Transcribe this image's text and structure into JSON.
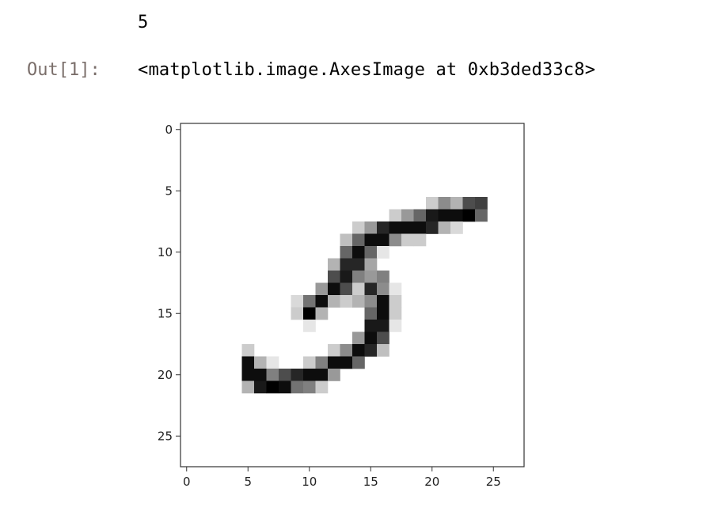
{
  "cell": {
    "stdout": "5",
    "out_prompt": "Out[1]:",
    "out_repr": "<matplotlib.image.AxesImage at 0xb3ded33c8>"
  },
  "chart_data": {
    "type": "heatmap",
    "colormap": "gray_r",
    "shape": [
      28,
      28
    ],
    "x_ticks": [
      "0",
      "5",
      "10",
      "15",
      "20",
      "25"
    ],
    "y_ticks": [
      "0",
      "5",
      "10",
      "15",
      "20",
      "25"
    ],
    "xlim": [
      -0.5,
      27.5
    ],
    "ylim": [
      27.5,
      -0.5
    ],
    "pixels": [
      {
        "r": 6,
        "c": 20,
        "v": 0.2
      },
      {
        "r": 6,
        "c": 21,
        "v": 0.45
      },
      {
        "r": 6,
        "c": 22,
        "v": 0.3
      },
      {
        "r": 6,
        "c": 23,
        "v": 0.7
      },
      {
        "r": 6,
        "c": 24,
        "v": 0.75
      },
      {
        "r": 7,
        "c": 17,
        "v": 0.2
      },
      {
        "r": 7,
        "c": 18,
        "v": 0.4
      },
      {
        "r": 7,
        "c": 19,
        "v": 0.6
      },
      {
        "r": 7,
        "c": 20,
        "v": 0.9
      },
      {
        "r": 7,
        "c": 21,
        "v": 0.95
      },
      {
        "r": 7,
        "c": 22,
        "v": 0.95
      },
      {
        "r": 7,
        "c": 23,
        "v": 1.0
      },
      {
        "r": 7,
        "c": 24,
        "v": 0.6
      },
      {
        "r": 8,
        "c": 14,
        "v": 0.2
      },
      {
        "r": 8,
        "c": 15,
        "v": 0.4
      },
      {
        "r": 8,
        "c": 16,
        "v": 0.85
      },
      {
        "r": 8,
        "c": 17,
        "v": 0.95
      },
      {
        "r": 8,
        "c": 18,
        "v": 0.95
      },
      {
        "r": 8,
        "c": 19,
        "v": 0.95
      },
      {
        "r": 8,
        "c": 20,
        "v": 0.85
      },
      {
        "r": 8,
        "c": 21,
        "v": 0.3
      },
      {
        "r": 8,
        "c": 22,
        "v": 0.15
      },
      {
        "r": 9,
        "c": 13,
        "v": 0.25
      },
      {
        "r": 9,
        "c": 14,
        "v": 0.6
      },
      {
        "r": 9,
        "c": 15,
        "v": 0.95
      },
      {
        "r": 9,
        "c": 16,
        "v": 0.95
      },
      {
        "r": 9,
        "c": 17,
        "v": 0.45
      },
      {
        "r": 9,
        "c": 18,
        "v": 0.2
      },
      {
        "r": 9,
        "c": 19,
        "v": 0.2
      },
      {
        "r": 10,
        "c": 13,
        "v": 0.6
      },
      {
        "r": 10,
        "c": 14,
        "v": 0.95
      },
      {
        "r": 10,
        "c": 15,
        "v": 0.6
      },
      {
        "r": 10,
        "c": 16,
        "v": 0.1
      },
      {
        "r": 11,
        "c": 12,
        "v": 0.3
      },
      {
        "r": 11,
        "c": 13,
        "v": 0.85
      },
      {
        "r": 11,
        "c": 14,
        "v": 0.85
      },
      {
        "r": 11,
        "c": 15,
        "v": 0.35
      },
      {
        "r": 12,
        "c": 12,
        "v": 0.7
      },
      {
        "r": 12,
        "c": 13,
        "v": 0.9
      },
      {
        "r": 12,
        "c": 14,
        "v": 0.5
      },
      {
        "r": 12,
        "c": 15,
        "v": 0.4
      },
      {
        "r": 12,
        "c": 16,
        "v": 0.5
      },
      {
        "r": 13,
        "c": 11,
        "v": 0.4
      },
      {
        "r": 13,
        "c": 12,
        "v": 0.95
      },
      {
        "r": 13,
        "c": 13,
        "v": 0.7
      },
      {
        "r": 13,
        "c": 14,
        "v": 0.2
      },
      {
        "r": 13,
        "c": 15,
        "v": 0.85
      },
      {
        "r": 13,
        "c": 16,
        "v": 0.45
      },
      {
        "r": 13,
        "c": 17,
        "v": 0.1
      },
      {
        "r": 14,
        "c": 9,
        "v": 0.15
      },
      {
        "r": 14,
        "c": 10,
        "v": 0.55
      },
      {
        "r": 14,
        "c": 11,
        "v": 0.95
      },
      {
        "r": 14,
        "c": 12,
        "v": 0.3
      },
      {
        "r": 14,
        "c": 13,
        "v": 0.2
      },
      {
        "r": 14,
        "c": 14,
        "v": 0.3
      },
      {
        "r": 14,
        "c": 15,
        "v": 0.45
      },
      {
        "r": 14,
        "c": 16,
        "v": 0.95
      },
      {
        "r": 14,
        "c": 17,
        "v": 0.2
      },
      {
        "r": 15,
        "c": 9,
        "v": 0.2
      },
      {
        "r": 15,
        "c": 10,
        "v": 1.0
      },
      {
        "r": 15,
        "c": 11,
        "v": 0.3
      },
      {
        "r": 15,
        "c": 15,
        "v": 0.6
      },
      {
        "r": 15,
        "c": 16,
        "v": 0.95
      },
      {
        "r": 15,
        "c": 17,
        "v": 0.2
      },
      {
        "r": 16,
        "c": 10,
        "v": 0.1
      },
      {
        "r": 16,
        "c": 15,
        "v": 0.9
      },
      {
        "r": 16,
        "c": 16,
        "v": 0.9
      },
      {
        "r": 16,
        "c": 17,
        "v": 0.1
      },
      {
        "r": 17,
        "c": 14,
        "v": 0.4
      },
      {
        "r": 17,
        "c": 15,
        "v": 0.95
      },
      {
        "r": 17,
        "c": 16,
        "v": 0.7
      },
      {
        "r": 18,
        "c": 5,
        "v": 0.2
      },
      {
        "r": 18,
        "c": 12,
        "v": 0.2
      },
      {
        "r": 18,
        "c": 13,
        "v": 0.45
      },
      {
        "r": 18,
        "c": 14,
        "v": 0.95
      },
      {
        "r": 18,
        "c": 15,
        "v": 0.85
      },
      {
        "r": 18,
        "c": 16,
        "v": 0.25
      },
      {
        "r": 19,
        "c": 5,
        "v": 0.95
      },
      {
        "r": 19,
        "c": 6,
        "v": 0.3
      },
      {
        "r": 19,
        "c": 7,
        "v": 0.1
      },
      {
        "r": 19,
        "c": 10,
        "v": 0.2
      },
      {
        "r": 19,
        "c": 11,
        "v": 0.5
      },
      {
        "r": 19,
        "c": 12,
        "v": 0.95
      },
      {
        "r": 19,
        "c": 13,
        "v": 0.95
      },
      {
        "r": 19,
        "c": 14,
        "v": 0.6
      },
      {
        "r": 20,
        "c": 5,
        "v": 0.95
      },
      {
        "r": 20,
        "c": 6,
        "v": 0.95
      },
      {
        "r": 20,
        "c": 7,
        "v": 0.5
      },
      {
        "r": 20,
        "c": 8,
        "v": 0.7
      },
      {
        "r": 20,
        "c": 9,
        "v": 0.85
      },
      {
        "r": 20,
        "c": 10,
        "v": 0.95
      },
      {
        "r": 20,
        "c": 11,
        "v": 0.95
      },
      {
        "r": 20,
        "c": 12,
        "v": 0.4
      },
      {
        "r": 21,
        "c": 5,
        "v": 0.3
      },
      {
        "r": 21,
        "c": 6,
        "v": 0.9
      },
      {
        "r": 21,
        "c": 7,
        "v": 1.0
      },
      {
        "r": 21,
        "c": 8,
        "v": 0.95
      },
      {
        "r": 21,
        "c": 9,
        "v": 0.55
      },
      {
        "r": 21,
        "c": 10,
        "v": 0.5
      },
      {
        "r": 21,
        "c": 11,
        "v": 0.2
      }
    ]
  }
}
